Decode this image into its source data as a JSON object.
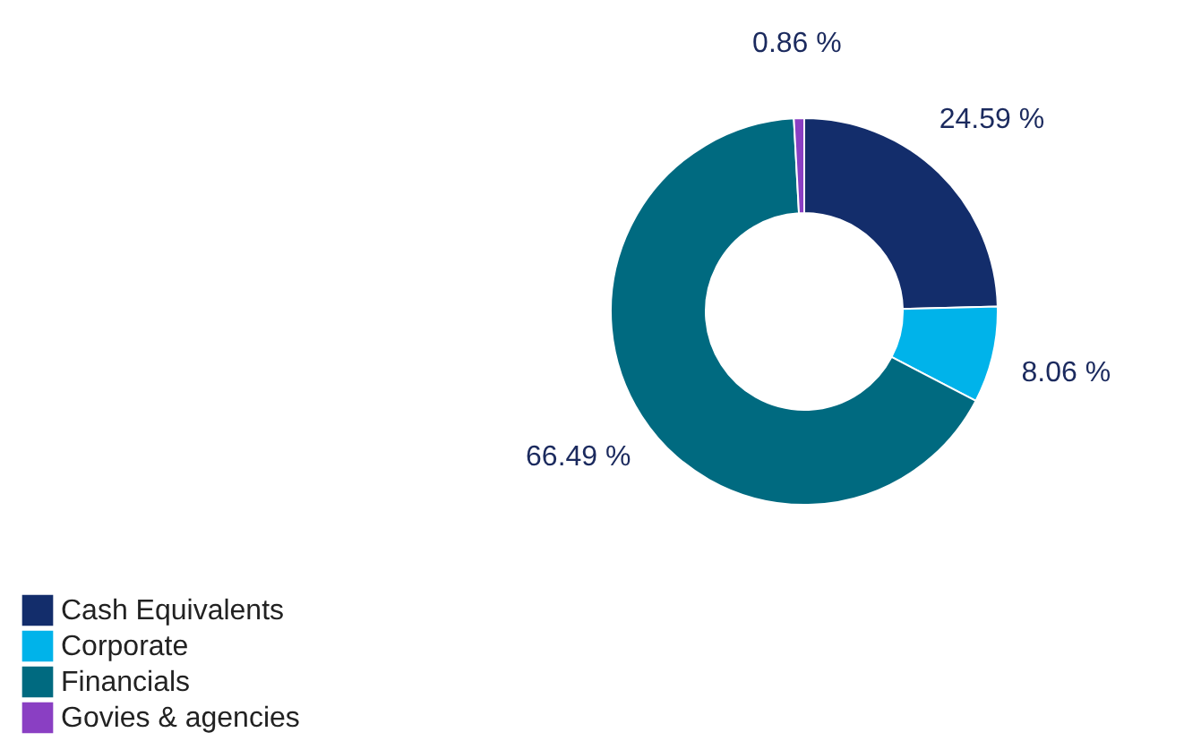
{
  "chart_data": {
    "type": "donut",
    "categories": [
      "Cash Equivalents",
      "Corporate",
      "Financials",
      "Govies & agencies"
    ],
    "values": [
      24.59,
      8.06,
      66.49,
      0.86
    ],
    "colors": [
      "#132d6b",
      "#00b3ea",
      "#006a80",
      "#8a3fc3"
    ],
    "value_labels": [
      "24.59 %",
      "8.06 %",
      "66.49 %",
      "0.86 %"
    ],
    "legend": "bottom left"
  }
}
